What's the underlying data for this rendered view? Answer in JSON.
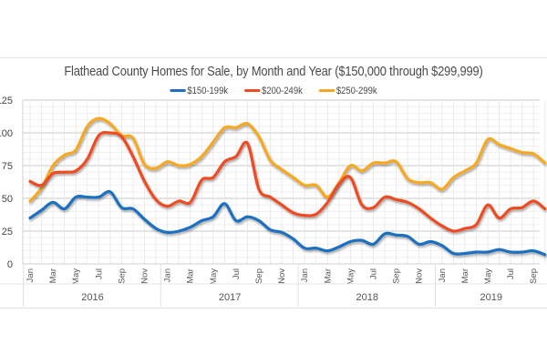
{
  "chart_data": {
    "type": "line",
    "title": "Flathead County Homes for Sale, by Month and Year ($150,000 through $299,999)",
    "xlabel": "",
    "ylabel": "",
    "ylim": [
      0,
      125
    ],
    "yticks": [
      0,
      25,
      50,
      75,
      100,
      125
    ],
    "grid": true,
    "legend_position": "top-center",
    "x": [
      "Jan 2016",
      "Feb 2016",
      "Mar 2016",
      "Apr 2016",
      "May 2016",
      "Jun 2016",
      "Jul 2016",
      "Aug 2016",
      "Sep 2016",
      "Oct 2016",
      "Nov 2016",
      "Dec 2016",
      "Jan 2017",
      "Feb 2017",
      "Mar 2017",
      "Apr 2017",
      "May 2017",
      "Jun 2017",
      "Jul 2017",
      "Aug 2017",
      "Sep 2017",
      "Oct 2017",
      "Nov 2017",
      "Dec 2017",
      "Jan 2018",
      "Feb 2018",
      "Mar 2018",
      "Apr 2018",
      "May 2018",
      "Jun 2018",
      "Jul 2018",
      "Aug 2018",
      "Sep 2018",
      "Oct 2018",
      "Nov 2018",
      "Dec 2018",
      "Jan 2019",
      "Feb 2019",
      "Mar 2019",
      "Apr 2019",
      "May 2019",
      "Jun 2019",
      "Jul 2019",
      "Aug 2019",
      "Sep 2019",
      "Oct 2019"
    ],
    "xtick_labels": [
      "Jan",
      "Mar",
      "May",
      "Jul",
      "Sep",
      "Nov",
      "Jan",
      "Mar",
      "May",
      "Jul",
      "Sep",
      "Nov",
      "Jan",
      "Mar",
      "May",
      "Jul",
      "Sep",
      "Nov",
      "Jan",
      "Mar",
      "May",
      "Jul",
      "Sep"
    ],
    "xtick_month_index": [
      0,
      2,
      4,
      6,
      8,
      10,
      12,
      14,
      16,
      18,
      20,
      22,
      24,
      26,
      28,
      30,
      32,
      34,
      36,
      38,
      40,
      42,
      44
    ],
    "year_labels": [
      {
        "label": "2016",
        "start": 0,
        "end": 11
      },
      {
        "label": "2017",
        "start": 12,
        "end": 23
      },
      {
        "label": "2018",
        "start": 24,
        "end": 35
      },
      {
        "label": "2019",
        "start": 36,
        "end": 45
      }
    ],
    "series": [
      {
        "name": "$150-199k",
        "color": "#1f6fc1",
        "values": [
          35,
          41,
          47,
          42,
          51,
          51,
          51,
          55,
          43,
          42,
          34,
          27,
          24,
          25,
          28,
          33,
          36,
          46,
          33,
          36,
          33,
          26,
          24,
          19,
          12,
          12,
          10,
          13,
          17,
          18,
          15,
          23,
          22,
          21,
          15,
          17,
          14,
          8,
          8,
          9,
          9,
          11,
          9,
          9,
          10,
          7
        ]
      },
      {
        "name": "$200-249k",
        "color": "#ef4b24",
        "values": [
          63,
          60,
          69,
          70,
          71,
          80,
          98,
          100,
          97,
          82,
          63,
          49,
          44,
          48,
          47,
          64,
          66,
          78,
          82,
          92,
          57,
          51,
          45,
          39,
          37,
          38,
          47,
          61,
          66,
          45,
          43,
          51,
          49,
          47,
          42,
          35,
          29,
          25,
          27,
          30,
          45,
          35,
          42,
          43,
          48,
          42
        ]
      },
      {
        "name": "$250-299k",
        "color": "#f7a823",
        "values": [
          48,
          58,
          75,
          83,
          87,
          105,
          111,
          107,
          98,
          96,
          76,
          73,
          78,
          75,
          76,
          82,
          93,
          104,
          104,
          107,
          97,
          79,
          72,
          66,
          60,
          60,
          51,
          62,
          75,
          71,
          77,
          77,
          78,
          65,
          62,
          62,
          57,
          66,
          71,
          77,
          95,
          91,
          88,
          85,
          84,
          77
        ]
      }
    ]
  }
}
